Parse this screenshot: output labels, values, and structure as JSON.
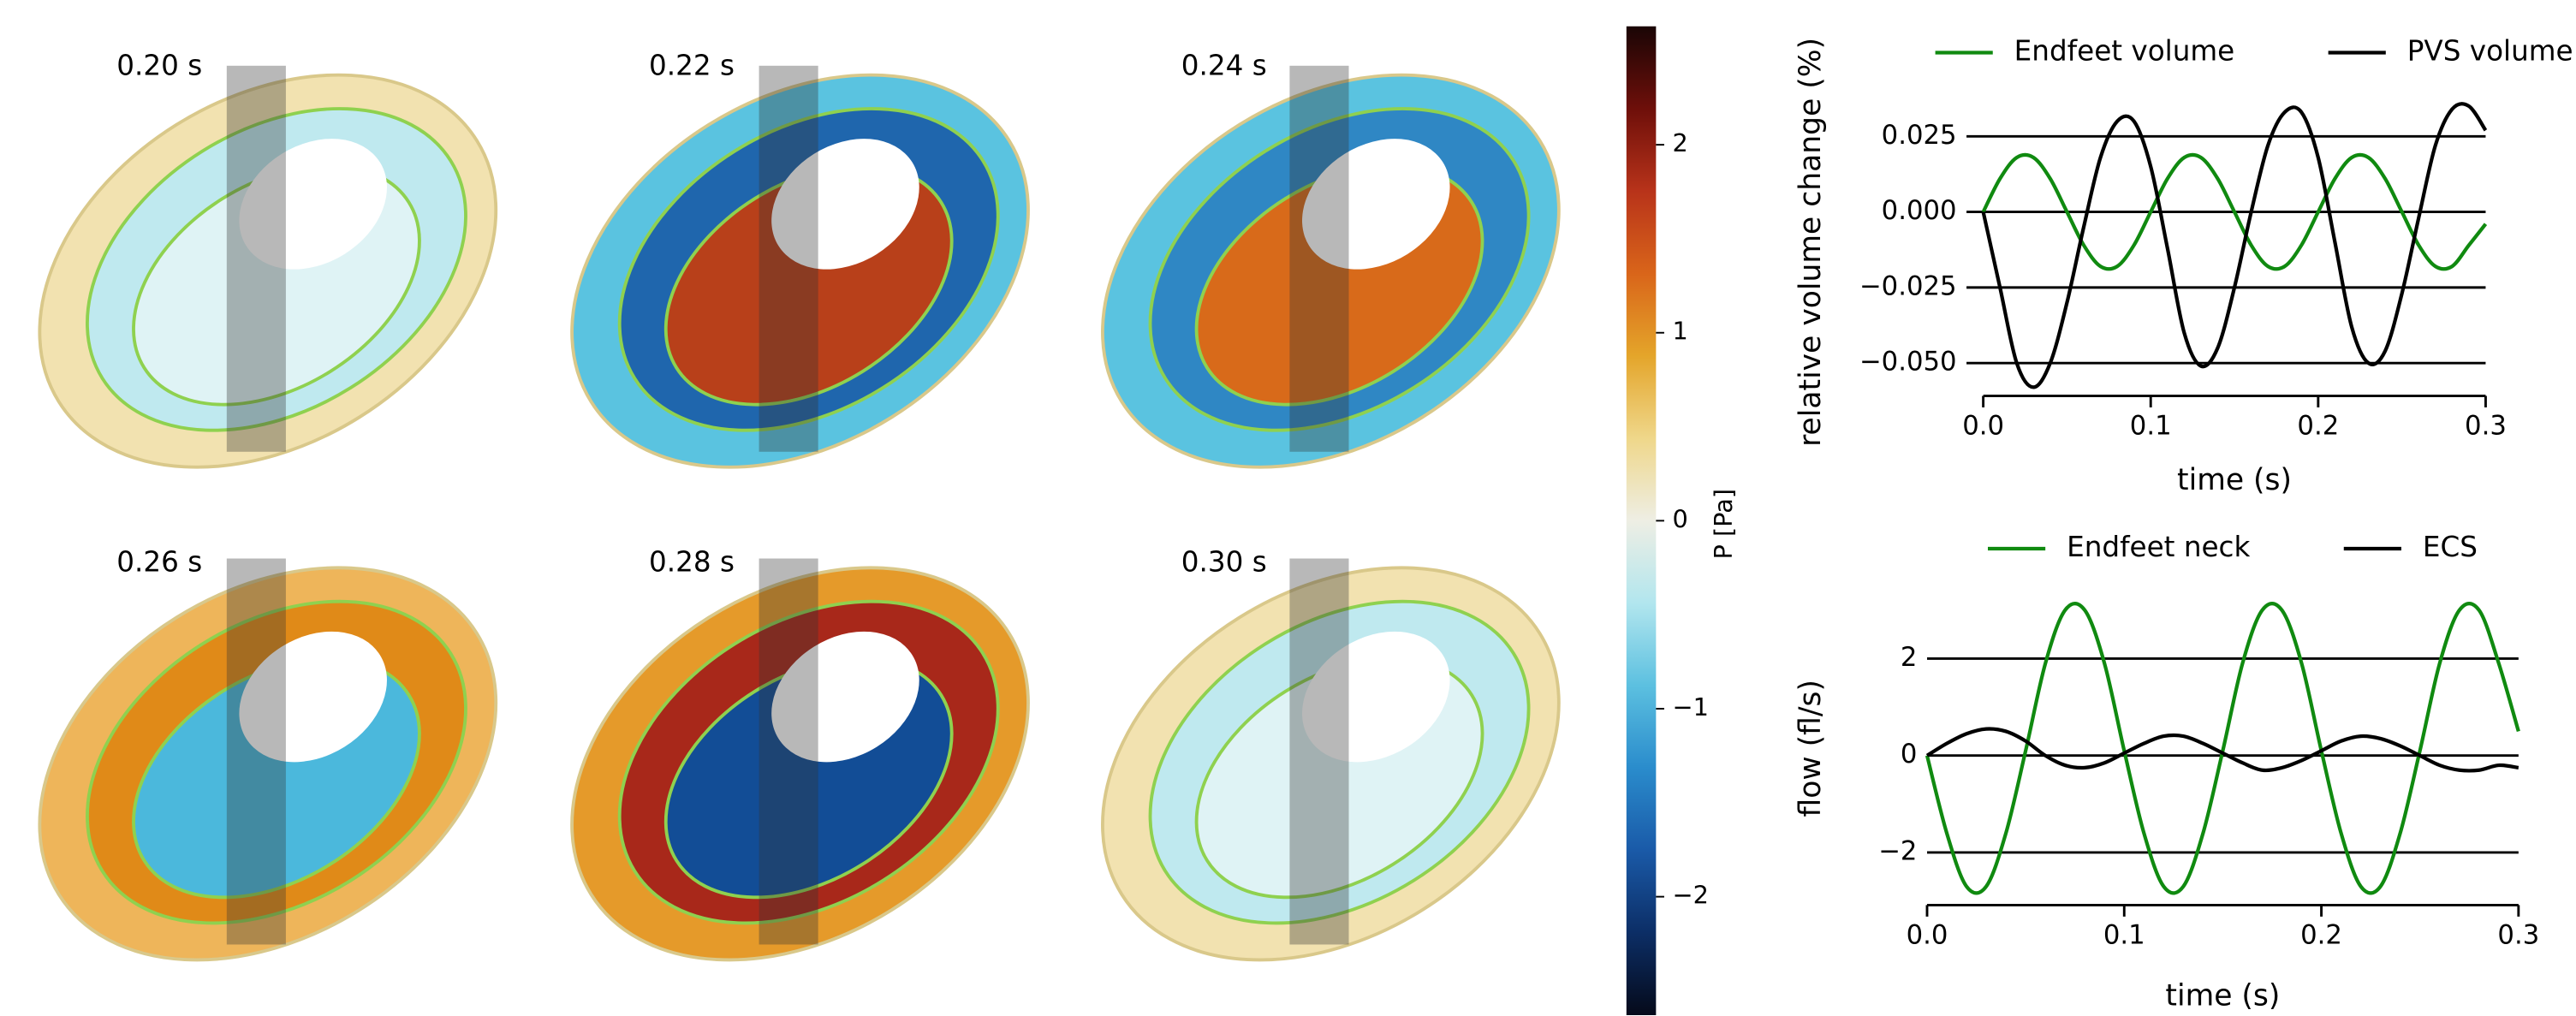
{
  "renders": {
    "labels": [
      "0.20 s",
      "0.22 s",
      "0.24 s",
      "0.26 s",
      "0.28 s",
      "0.30 s"
    ]
  },
  "colorbar": {
    "label": "P [Pa]",
    "lim": [
      -2.63,
      2.63
    ],
    "ticks": [
      {
        "value": -2,
        "label": "−2"
      },
      {
        "value": -1,
        "label": "−1"
      },
      0,
      1,
      2
    ],
    "colors": [
      "#1a0505",
      "#6e0f0a",
      "#b8331a",
      "#d9651a",
      "#e4a52a",
      "#efd78a",
      "#eeeee4",
      "#b2e6ee",
      "#5cc0e0",
      "#2a8ccc",
      "#1a5aa8",
      "#0c2e66",
      "#050a1a"
    ]
  },
  "chart_data": [
    {
      "type": "line",
      "xlabel": "time (s)",
      "ylabel": "relative volume change (%)",
      "x": [
        0,
        0.01,
        0.02,
        0.03,
        0.04,
        0.05,
        0.06,
        0.07,
        0.08,
        0.09,
        0.1,
        0.11,
        0.12,
        0.13,
        0.14,
        0.15,
        0.16,
        0.17,
        0.18,
        0.19,
        0.2,
        0.21,
        0.22,
        0.23,
        0.24,
        0.25,
        0.26,
        0.27,
        0.28,
        0.29,
        0.3
      ],
      "series": [
        {
          "name": "Endfeet volume",
          "color": "#108a10",
          "values": [
            0,
            0.011,
            0.018,
            0.018,
            0.011,
            0,
            -0.011,
            -0.018,
            -0.018,
            -0.011,
            0,
            0.011,
            0.018,
            0.018,
            0.011,
            0,
            -0.011,
            -0.018,
            -0.018,
            -0.011,
            0,
            0.011,
            0.018,
            0.018,
            0.011,
            0,
            -0.011,
            -0.018,
            -0.018,
            -0.011,
            -0.004
          ]
        },
        {
          "name": "PVS volume",
          "color": "#000000",
          "values": [
            0,
            -0.025,
            -0.05,
            -0.058,
            -0.05,
            -0.03,
            -0.005,
            0.018,
            0.03,
            0.03,
            0.015,
            -0.012,
            -0.04,
            -0.051,
            -0.045,
            -0.025,
            0,
            0.022,
            0.033,
            0.033,
            0.018,
            -0.01,
            -0.038,
            -0.05,
            -0.046,
            -0.027,
            -0.002,
            0.022,
            0.034,
            0.035,
            0.027
          ]
        }
      ],
      "xlim": [
        -0.01,
        0.3
      ],
      "ylim": [
        -0.06,
        0.04
      ],
      "xticks": [
        {
          "value": 0,
          "label": "0.0"
        },
        0.1,
        0.2,
        0.3
      ],
      "yticks": [
        {
          "value": -0.05,
          "label": "−0.050"
        },
        {
          "value": -0.025,
          "label": "−0.025"
        },
        {
          "value": 0,
          "label": "0.000"
        },
        0.025
      ],
      "grid": true,
      "legend": "top"
    },
    {
      "type": "line",
      "xlabel": "time (s)",
      "ylabel": "flow (fl/s)",
      "x": [
        0,
        0.01,
        0.02,
        0.03,
        0.04,
        0.05,
        0.06,
        0.07,
        0.08,
        0.09,
        0.1,
        0.11,
        0.12,
        0.13,
        0.14,
        0.15,
        0.16,
        0.17,
        0.18,
        0.19,
        0.2,
        0.21,
        0.22,
        0.23,
        0.24,
        0.25,
        0.26,
        0.27,
        0.28,
        0.29,
        0.3
      ],
      "series": [
        {
          "name": "Endfeet neck",
          "color": "#108a10",
          "values": [
            0,
            -1.6,
            -2.7,
            -2.7,
            -1.6,
            0.1,
            1.9,
            3.0,
            3.0,
            1.9,
            0.1,
            -1.6,
            -2.7,
            -2.7,
            -1.6,
            0.1,
            1.9,
            3.0,
            3.0,
            1.9,
            0.1,
            -1.6,
            -2.7,
            -2.7,
            -1.6,
            0.1,
            1.9,
            3.0,
            3.0,
            1.9,
            0.5
          ]
        },
        {
          "name": "ECS",
          "color": "#000000",
          "values": [
            0,
            0.25,
            0.45,
            0.55,
            0.5,
            0.3,
            0,
            -0.2,
            -0.25,
            -0.15,
            0.05,
            0.25,
            0.4,
            0.4,
            0.25,
            0.05,
            -0.15,
            -0.3,
            -0.25,
            -0.1,
            0.1,
            0.3,
            0.4,
            0.35,
            0.2,
            0,
            -0.2,
            -0.3,
            -0.3,
            -0.2,
            -0.25
          ]
        }
      ],
      "xlim": [
        0,
        0.3
      ],
      "ylim": [
        -3,
        3.3
      ],
      "xticks": [
        {
          "value": 0,
          "label": "0.0"
        },
        0.1,
        0.2,
        0.3
      ],
      "yticks": [
        {
          "value": -2,
          "label": "−2"
        },
        0,
        2
      ],
      "grid": true,
      "legend": "top"
    }
  ]
}
